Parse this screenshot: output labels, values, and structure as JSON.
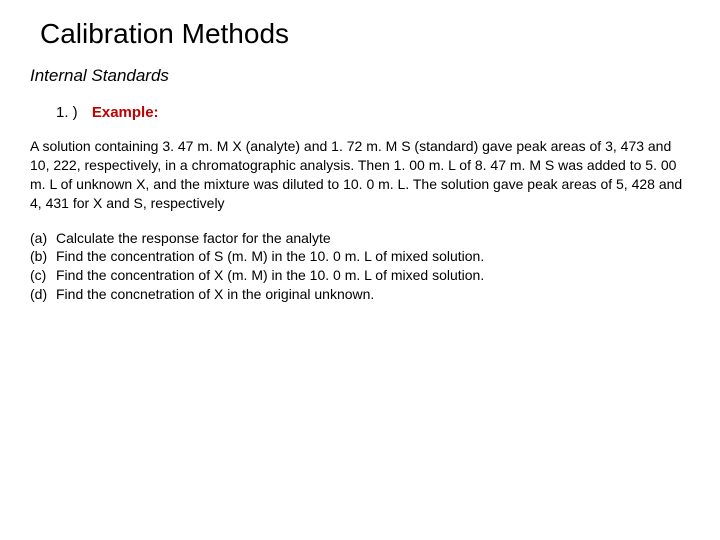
{
  "title": "Calibration Methods",
  "subtitle": "Internal Standards",
  "example": {
    "number": "1. )",
    "label": "Example:"
  },
  "bodyText": "A solution containing 3. 47 m. M X (analyte) and 1. 72 m. M S (standard) gave peak areas of 3, 473 and 10, 222, respectively, in a chromatographic analysis. Then 1. 00 m. L of 8. 47 m. M S was added to 5. 00 m. L of unknown X, and the mixture was diluted to 10. 0 m. L. The solution gave peak areas of 5, 428 and 4, 431 for X and S, respectively",
  "questions": [
    {
      "label": "(a)",
      "text": "Calculate the response factor for the analyte"
    },
    {
      "label": "(b)",
      "text": "Find the concentration of S (m. M) in the 10. 0 m. L of mixed solution."
    },
    {
      "label": "(c)",
      "text": "Find the concentration of X (m. M) in the 10. 0 m. L of mixed solution."
    },
    {
      "label": "(d)",
      "text": "Find the concnetration of X in the original unknown."
    }
  ],
  "colors": {
    "exampleLabel": "#c00000",
    "text": "#000000",
    "background": "#ffffff"
  },
  "fonts": {
    "titleSize": 28,
    "subtitleSize": 17,
    "exampleSize": 15,
    "bodySize": 14
  }
}
